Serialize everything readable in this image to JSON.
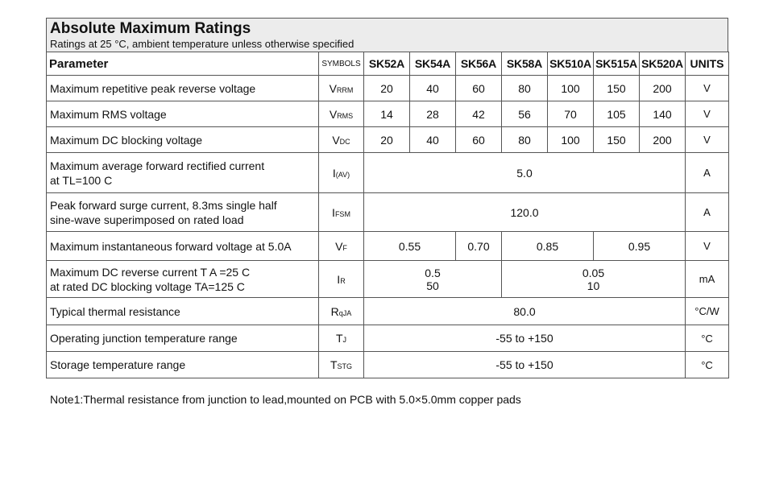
{
  "title": "Absolute Maximum Ratings",
  "subtitle": "Ratings at  25 °C, ambient temperature unless otherwise specified",
  "headers": {
    "parameter": "Parameter",
    "symbols": "SYMBOLS",
    "parts": [
      "SK52A",
      "SK54A",
      "SK56A",
      "SK58A",
      "SK510A",
      "SK515A",
      "SK520A"
    ],
    "units": "UNITS"
  },
  "rows": {
    "vrrm": {
      "param": "Maximum repetitive peak reverse voltage",
      "sym": "V",
      "sub": "RRM",
      "values": [
        "20",
        "40",
        "60",
        "80",
        "100",
        "150",
        "200"
      ],
      "unit": "V"
    },
    "vrms": {
      "param": "Maximum RMS voltage",
      "sym": "V",
      "sub": "RMS",
      "values": [
        "14",
        "28",
        "42",
        "56",
        "70",
        "105",
        "140"
      ],
      "unit": "V"
    },
    "vdc": {
      "param": "Maximum DC blocking voltage",
      "sym": "V",
      "sub": "DC",
      "values": [
        "20",
        "40",
        "60",
        "80",
        "100",
        "150",
        "200"
      ],
      "unit": "V"
    },
    "iav": {
      "param_line1": "Maximum average forward rectified current",
      "param_line2": "at TL=100 C",
      "sym": "I",
      "sub": "(AV)",
      "value": "5.0",
      "unit": "A"
    },
    "ifsm": {
      "param_line1": "Peak forward surge current, 8.3ms single half",
      "param_line2": " sine-wave superimposed on rated load",
      "sym": "I",
      "sub": "FSM",
      "value": "120.0",
      "unit": "A"
    },
    "vf": {
      "param": "Maximum instantaneous forward voltage at 5.0A",
      "sym": "V",
      "sub": "F",
      "values": [
        "0.55",
        "0.70",
        "0.85",
        "0.95"
      ],
      "unit": "V"
    },
    "ir": {
      "param_line1": "Maximum DC reverse current     T A =25 C",
      "param_line2": "at rated DC blocking voltage     TA=125 C",
      "sym": "I",
      "sub": "R",
      "group1": [
        "0.5",
        "50"
      ],
      "group2": [
        "0.05",
        "10"
      ],
      "unit": "mA"
    },
    "rth": {
      "param": "Typical thermal resistance",
      "sym": "R",
      "sub": "qJA",
      "value": "80.0",
      "unit": "°C/W"
    },
    "tj": {
      "param": "Operating junction  temperature range",
      "sym": "T",
      "sub": "J",
      "value": "-55 to +150",
      "unit": "°C"
    },
    "tstg": {
      "param": "Storage temperature range",
      "sym": "T",
      "sub": "STG",
      "value": "-55 to +150",
      "unit": "°C"
    }
  },
  "note": "Note1:Thermal resistance from junction to lead,mounted on PCB with 5.0×5.0mm copper pads"
}
